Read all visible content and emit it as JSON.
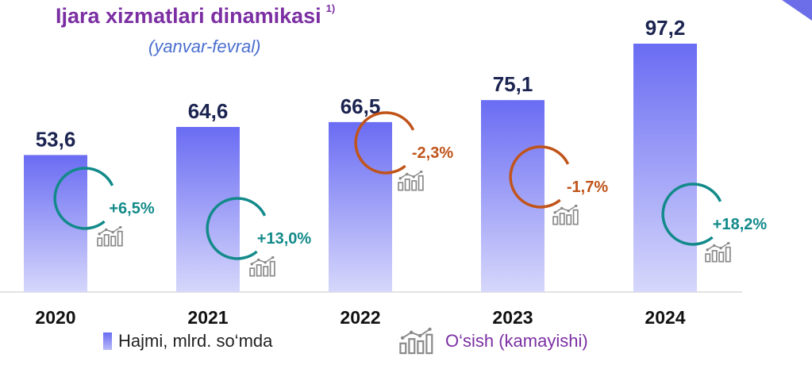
{
  "title": "Ijara xizmatlari dinamikasi",
  "title_note": "1)",
  "subtitle": "(yanvar-fevral)",
  "legend": {
    "volume_label": "Hajmi, mlrd. so‘mda",
    "growth_label": "O‘sish (kamayishi)",
    "growth_icon": "growth-chart-icon"
  },
  "colors": {
    "bar_top": "#6a6cf3",
    "bar_bottom": "#d6d7fb",
    "positive": "#138a8a",
    "negative": "#c0541a",
    "title": "#7b2fa3",
    "value_label": "#1b2450"
  },
  "chart_data": {
    "type": "bar",
    "categories": [
      "2020",
      "2021",
      "2022",
      "2023",
      "2024"
    ],
    "series": [
      {
        "name": "Hajmi, mlrd. so‘mda",
        "values": [
          53.6,
          64.6,
          66.5,
          75.1,
          97.2
        ]
      }
    ],
    "value_labels": [
      "53,6",
      "64,6",
      "66,5",
      "75,1",
      "97,2"
    ],
    "growth": [
      {
        "after": "2020",
        "label": "+6,5%",
        "value": 6.5
      },
      {
        "after": "2021",
        "label": "+13,0%",
        "value": 13.0
      },
      {
        "after": "2022",
        "label": "-2,3%",
        "value": -2.3
      },
      {
        "after": "2023",
        "label": "-1,7%",
        "value": -1.7
      },
      {
        "after": "2024",
        "label": "+18,2%",
        "value": 18.2
      }
    ],
    "ylim": [
      0,
      97.2
    ],
    "grid": false,
    "legend_position": "bottom"
  }
}
